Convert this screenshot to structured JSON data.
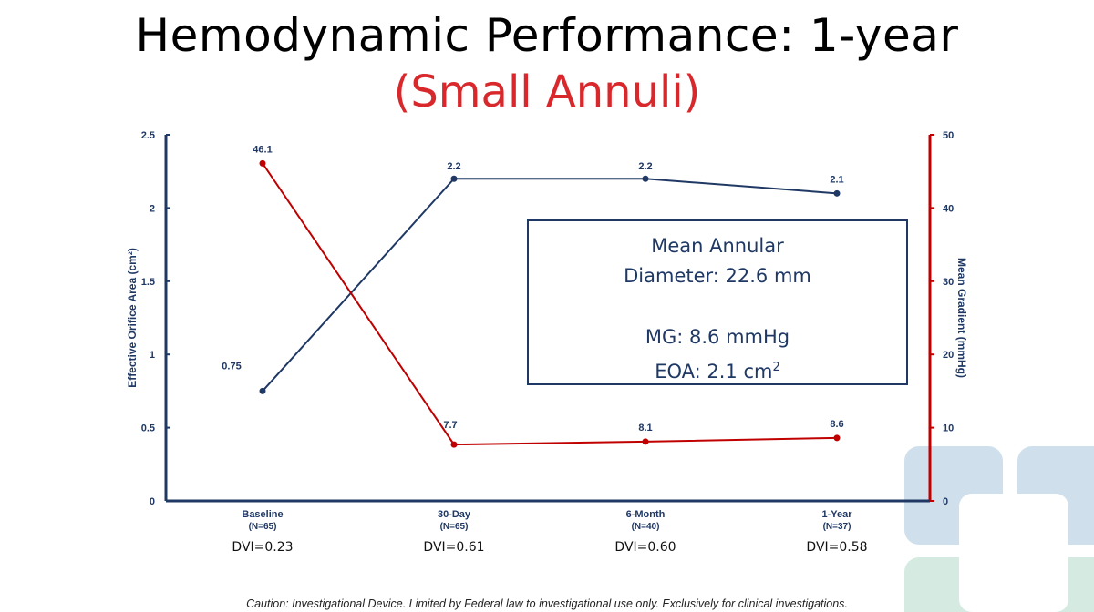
{
  "slide": {
    "title": "Hemodynamic Performance: 1-year",
    "subtitle": "(Small Annuli)",
    "caution": "Caution: Investigational Device. Limited by Federal law to investigational use only. Exclusively for clinical investigations."
  },
  "info_box": {
    "line1": "Mean Annular",
    "line2": "Diameter: 22.6 mm",
    "line3": "MG: 8.6 mmHg",
    "line4_prefix": "EOA: 2.1 cm",
    "line4_sup": "2"
  },
  "chart_data": {
    "type": "line",
    "categories": [
      {
        "label": "Baseline",
        "n": "(N=65)",
        "dvi": "DVI=0.23"
      },
      {
        "label": "30-Day",
        "n": "(N=65)",
        "dvi": "DVI=0.61"
      },
      {
        "label": "6-Month",
        "n": "(N=40)",
        "dvi": "DVI=0.60"
      },
      {
        "label": "1-Year",
        "n": "(N=37)",
        "dvi": "DVI=0.58"
      }
    ],
    "y_left": {
      "label": "Effective Orifice Area (cm²)",
      "ylim": [
        0,
        2.5
      ],
      "ticks": [
        "0",
        "0.5",
        "1",
        "1.5",
        "2",
        "2.5"
      ],
      "tick_values": [
        0,
        0.5,
        1,
        1.5,
        2,
        2.5
      ],
      "color": "#1f3864"
    },
    "y_right": {
      "label": "Mean Gradient (mmHg)",
      "ylim": [
        0,
        50
      ],
      "ticks": [
        "0",
        "10",
        "20",
        "30",
        "40",
        "50"
      ],
      "tick_values": [
        0,
        10,
        20,
        30,
        40,
        50
      ],
      "color": "#c00000"
    },
    "series": [
      {
        "axis": "left",
        "color": "#1f3864",
        "values": [
          0.75,
          2.2,
          2.2,
          2.1
        ],
        "labels": [
          "0.75",
          "2.2",
          "2.2",
          "2.1"
        ]
      },
      {
        "axis": "right",
        "color": "#c00000",
        "values": [
          46.1,
          7.7,
          8.1,
          8.6
        ],
        "labels": [
          "46.1",
          "7.7",
          "8.1",
          "8.6"
        ]
      }
    ],
    "grid": false
  }
}
